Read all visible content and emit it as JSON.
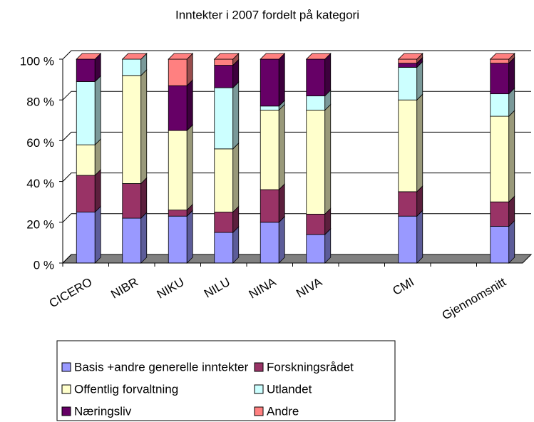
{
  "chart_data": {
    "type": "bar3d_stacked",
    "title": "Inntekter i 2007 fordelt på kategori",
    "categories": [
      "CICERO",
      "NIBR",
      "NIKU",
      "NILU",
      "NINA",
      "NIVA",
      null,
      "CMI",
      null,
      "Gjennomsnitt"
    ],
    "series": [
      {
        "name": "Basis +andre generelle inntekter",
        "color": "#9999ff",
        "values": [
          25,
          22,
          23,
          15,
          20,
          14,
          null,
          23,
          null,
          18
        ]
      },
      {
        "name": "Forskningsrådet",
        "color": "#993366",
        "values": [
          18,
          17,
          3,
          10,
          16,
          10,
          null,
          12,
          null,
          12
        ]
      },
      {
        "name": "Offentlig forvaltning",
        "color": "#ffffcc",
        "values": [
          15,
          53,
          39,
          31,
          39,
          51,
          null,
          45,
          null,
          42
        ]
      },
      {
        "name": "Utlandet",
        "color": "#ccffff",
        "values": [
          31,
          8,
          0,
          30,
          2,
          7,
          null,
          16,
          null,
          11
        ]
      },
      {
        "name": "Næringsliv",
        "color": "#660066",
        "values": [
          11,
          0,
          22,
          11,
          23,
          18,
          null,
          2,
          null,
          15
        ]
      },
      {
        "name": "Andre",
        "color": "#ff8080",
        "values": [
          0,
          0,
          13,
          3,
          0,
          0,
          null,
          2,
          null,
          2
        ]
      }
    ],
    "ylim": [
      0,
      100
    ],
    "yticks": [
      {
        "value": 0,
        "label": "0 %"
      },
      {
        "value": 20,
        "label": "20 %"
      },
      {
        "value": 40,
        "label": "40 %"
      },
      {
        "value": 60,
        "label": "60 %"
      },
      {
        "value": 80,
        "label": "80 %"
      },
      {
        "value": 100,
        "label": "100 %"
      }
    ],
    "grid": true
  }
}
